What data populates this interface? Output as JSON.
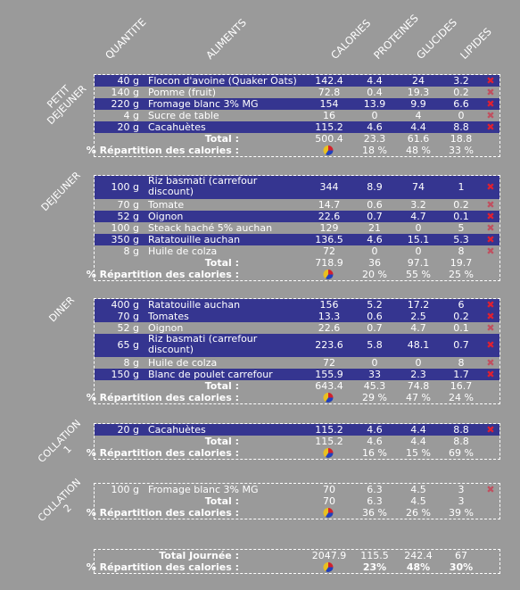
{
  "headers": {
    "quantite": "QUANTITE",
    "aliments": "ALIMENTS",
    "calories": "CALORIES",
    "proteines": "PROTEINES",
    "glucides": "GLUCIDES",
    "lipides": "LIPIDES"
  },
  "labels": {
    "total": "Total :",
    "repartition": "% Répartition des calories :",
    "total_journee": "Total Journée :"
  },
  "meals": [
    {
      "name": "PETIT DEJEUNER",
      "lines": [
        "PETIT",
        "DEJEUNER"
      ],
      "items": [
        {
          "qty": "40 g",
          "name": "Flocon d'avoine (Quaker Oats)",
          "cal": "142.4",
          "pro": "4.4",
          "glu": "24",
          "lip": "3.2",
          "style": "blue"
        },
        {
          "qty": "140 g",
          "name": "Pomme (fruit)",
          "cal": "72.8",
          "pro": "0.4",
          "glu": "19.3",
          "lip": "0.2",
          "style": "grey"
        },
        {
          "qty": "220 g",
          "name": "Fromage blanc 3% MG",
          "cal": "154",
          "pro": "13.9",
          "glu": "9.9",
          "lip": "6.6",
          "style": "blue"
        },
        {
          "qty": "4 g",
          "name": "Sucre de table",
          "cal": "16",
          "pro": "0",
          "glu": "4",
          "lip": "0",
          "style": "grey"
        },
        {
          "qty": "20 g",
          "name": "Cacahuètes",
          "cal": "115.2",
          "pro": "4.6",
          "glu": "4.4",
          "lip": "8.8",
          "style": "blue"
        }
      ],
      "total": {
        "cal": "500.4",
        "pro": "23.3",
        "glu": "61.6",
        "lip": "18.8"
      },
      "pct": {
        "pro": "18 %",
        "glu": "48 %",
        "lip": "33 %"
      }
    },
    {
      "name": "DEJEUNER",
      "lines": [
        "DEJEUNER"
      ],
      "items": [
        {
          "qty": "100 g",
          "name": "Riz basmati (carrefour discount)",
          "cal": "344",
          "pro": "8.9",
          "glu": "74",
          "lip": "1",
          "style": "blue",
          "tall": true
        },
        {
          "qty": "70 g",
          "name": "Tomate",
          "cal": "14.7",
          "pro": "0.6",
          "glu": "3.2",
          "lip": "0.2",
          "style": "grey"
        },
        {
          "qty": "52 g",
          "name": "Oignon",
          "cal": "22.6",
          "pro": "0.7",
          "glu": "4.7",
          "lip": "0.1",
          "style": "blue"
        },
        {
          "qty": "100 g",
          "name": "Steack haché 5% auchan",
          "cal": "129",
          "pro": "21",
          "glu": "0",
          "lip": "5",
          "style": "grey"
        },
        {
          "qty": "350 g",
          "name": "Ratatouille auchan",
          "cal": "136.5",
          "pro": "4.6",
          "glu": "15.1",
          "lip": "5.3",
          "style": "blue"
        },
        {
          "qty": "8 g",
          "name": "Huile de colza",
          "cal": "72",
          "pro": "0",
          "glu": "0",
          "lip": "8",
          "style": "grey"
        }
      ],
      "total": {
        "cal": "718.9",
        "pro": "36",
        "glu": "97.1",
        "lip": "19.7"
      },
      "pct": {
        "pro": "20 %",
        "glu": "55 %",
        "lip": "25 %"
      }
    },
    {
      "name": "DINER",
      "lines": [
        "DINER"
      ],
      "items": [
        {
          "qty": "400 g",
          "name": "Ratatouille auchan",
          "cal": "156",
          "pro": "5.2",
          "glu": "17.2",
          "lip": "6",
          "style": "blue"
        },
        {
          "qty": "70 g",
          "name": "Tomates",
          "cal": "13.3",
          "pro": "0.6",
          "glu": "2.5",
          "lip": "0.2",
          "style": "blue"
        },
        {
          "qty": "52 g",
          "name": "Oignon",
          "cal": "22.6",
          "pro": "0.7",
          "glu": "4.7",
          "lip": "0.1",
          "style": "grey"
        },
        {
          "qty": "65 g",
          "name": "Riz basmati (carrefour discount)",
          "cal": "223.6",
          "pro": "5.8",
          "glu": "48.1",
          "lip": "0.7",
          "style": "blue",
          "tall": true
        },
        {
          "qty": "8 g",
          "name": "Huile de colza",
          "cal": "72",
          "pro": "0",
          "glu": "0",
          "lip": "8",
          "style": "grey"
        },
        {
          "qty": "150 g",
          "name": "Blanc de poulet carrefour",
          "cal": "155.9",
          "pro": "33",
          "glu": "2.3",
          "lip": "1.7",
          "style": "blue"
        }
      ],
      "total": {
        "cal": "643.4",
        "pro": "45.3",
        "glu": "74.8",
        "lip": "16.7"
      },
      "pct": {
        "pro": "29 %",
        "glu": "47 %",
        "lip": "24 %"
      }
    },
    {
      "name": "COLLATION 1",
      "lines": [
        "COLLATION",
        "1"
      ],
      "items": [
        {
          "qty": "20 g",
          "name": "Cacahuètes",
          "cal": "115.2",
          "pro": "4.6",
          "glu": "4.4",
          "lip": "8.8",
          "style": "blue"
        }
      ],
      "total": {
        "cal": "115.2",
        "pro": "4.6",
        "glu": "4.4",
        "lip": "8.8"
      },
      "pct": {
        "pro": "16 %",
        "glu": "15 %",
        "lip": "69 %"
      }
    },
    {
      "name": "COLLATION 2",
      "lines": [
        "COLLATION",
        "2"
      ],
      "items": [
        {
          "qty": "100 g",
          "name": "Fromage blanc 3% MG",
          "cal": "70",
          "pro": "6.3",
          "glu": "4.5",
          "lip": "3",
          "style": "grey"
        }
      ],
      "total": {
        "cal": "70",
        "pro": "6.3",
        "glu": "4.5",
        "lip": "3"
      },
      "pct": {
        "pro": "36 %",
        "glu": "26 %",
        "lip": "39 %"
      }
    }
  ],
  "day": {
    "cal": "2047.9",
    "pro": "115.5",
    "glu": "242.4",
    "lip": "67",
    "pct_pro": "23%",
    "pct_glu": "48%",
    "pct_lip": "30%"
  },
  "icons": {
    "delete": "delete-icon",
    "pie": "pie-chart-icon"
  },
  "colors": {
    "background": "#9a9a9a",
    "row_blue": "#353590",
    "delete_red": "#e02030"
  }
}
